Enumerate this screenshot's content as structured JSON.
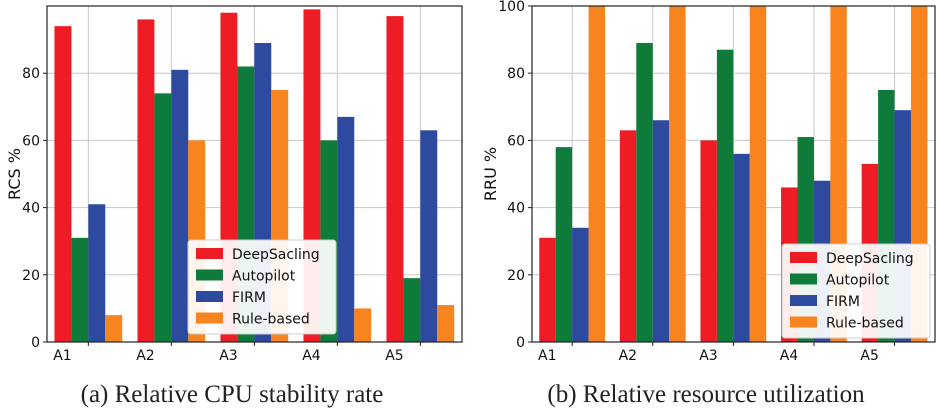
{
  "colors": {
    "DeepSacling": "#ee1c24",
    "Autopilot": "#0f7b3a",
    "FIRM": "#2e4a9e",
    "Rule-based": "#f7841f"
  },
  "chart_data": [
    {
      "type": "bar",
      "caption": "(a)  Relative CPU stability rate",
      "ylabel": "RCS %",
      "categories": [
        "A1",
        "A2",
        "A3",
        "A4",
        "A5"
      ],
      "ylim": [
        0,
        100
      ],
      "yticks": [
        0,
        20,
        40,
        60,
        80
      ],
      "grid": true,
      "legend_position": "lower-center-right",
      "series": [
        {
          "name": "DeepSacling",
          "values": [
            94,
            96,
            98,
            99,
            97
          ]
        },
        {
          "name": "Autopilot",
          "values": [
            31,
            74,
            82,
            60,
            19
          ]
        },
        {
          "name": "FIRM",
          "values": [
            41,
            81,
            89,
            67,
            63
          ]
        },
        {
          "name": "Rule-based",
          "values": [
            8,
            60,
            75,
            10,
            11
          ]
        }
      ]
    },
    {
      "type": "bar",
      "caption": "(b)  Relative resource utilization",
      "ylabel": "RRU %",
      "categories": [
        "A1",
        "A2",
        "A3",
        "A4",
        "A5"
      ],
      "ylim": [
        0,
        100
      ],
      "yticks": [
        0,
        20,
        40,
        60,
        80,
        100
      ],
      "grid": true,
      "legend_position": "lower-right",
      "series": [
        {
          "name": "DeepSacling",
          "values": [
            31,
            63,
            60,
            46,
            53
          ]
        },
        {
          "name": "Autopilot",
          "values": [
            58,
            89,
            87,
            61,
            75
          ]
        },
        {
          "name": "FIRM",
          "values": [
            34,
            66,
            56,
            48,
            69
          ]
        },
        {
          "name": "Rule-based",
          "values": [
            100,
            100,
            100,
            100,
            100
          ]
        }
      ]
    }
  ]
}
